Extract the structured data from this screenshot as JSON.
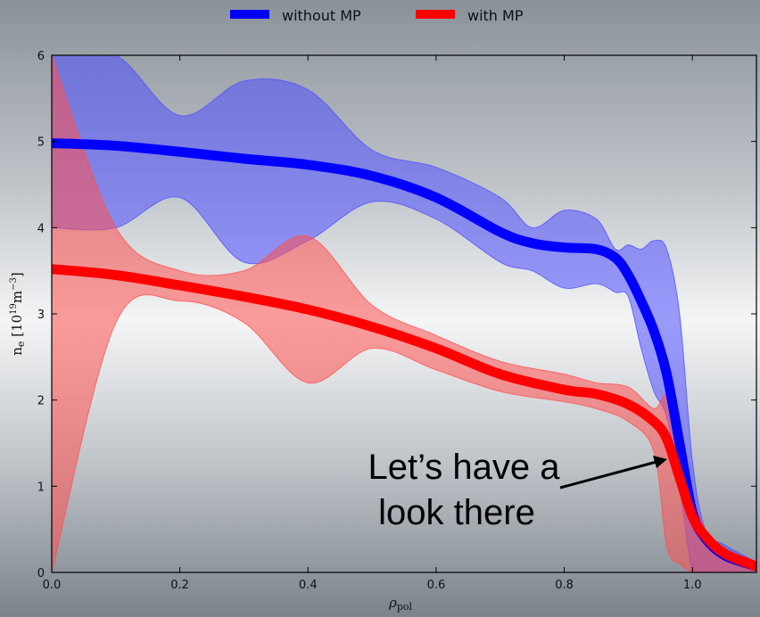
{
  "chart_data": {
    "type": "line",
    "xlabel": "ρpol",
    "ylabel": "ne [10^19 m^-3]",
    "xlim": [
      0.0,
      1.1
    ],
    "ylim": [
      0,
      6
    ],
    "x_ticks": [
      "0.0",
      "0.2",
      "0.4",
      "0.6",
      "0.8",
      "1.0"
    ],
    "y_ticks": [
      "0",
      "1",
      "2",
      "3",
      "4",
      "5",
      "6"
    ],
    "grid": false,
    "legend_placement": "top-center",
    "series": [
      {
        "name": "without MP",
        "color": "#0000ff",
        "band_color": "#5050ff",
        "x": [
          0.0,
          0.1,
          0.2,
          0.3,
          0.4,
          0.5,
          0.6,
          0.7,
          0.75,
          0.8,
          0.85,
          0.88,
          0.9,
          0.92,
          0.94,
          0.96,
          0.98,
          1.0,
          1.02,
          1.05,
          1.1
        ],
        "y": [
          4.98,
          4.95,
          4.88,
          4.8,
          4.73,
          4.6,
          4.35,
          3.95,
          3.82,
          3.77,
          3.75,
          3.65,
          3.45,
          3.15,
          2.8,
          2.3,
          1.5,
          0.7,
          0.4,
          0.2,
          0.07
        ],
        "band_upper": [
          6.0,
          6.0,
          5.3,
          5.7,
          5.6,
          4.9,
          4.7,
          4.35,
          4.0,
          4.2,
          4.1,
          3.75,
          3.8,
          3.75,
          3.85,
          3.75,
          3.0,
          1.3,
          0.5,
          0.32,
          0.12
        ],
        "band_lower": [
          4.0,
          4.0,
          4.35,
          3.6,
          3.85,
          4.3,
          4.1,
          3.6,
          3.5,
          3.3,
          3.35,
          3.25,
          3.2,
          2.6,
          2.1,
          1.8,
          1.0,
          0.0,
          0.0,
          0.0,
          0.0
        ]
      },
      {
        "name": "with MP",
        "color": "#ff0000",
        "band_color": "#ff5050",
        "x": [
          0.0,
          0.1,
          0.2,
          0.3,
          0.4,
          0.5,
          0.6,
          0.7,
          0.8,
          0.85,
          0.9,
          0.94,
          0.96,
          0.98,
          1.0,
          1.02,
          1.05,
          1.1
        ],
        "y": [
          3.52,
          3.45,
          3.33,
          3.2,
          3.05,
          2.85,
          2.6,
          2.3,
          2.12,
          2.07,
          1.95,
          1.75,
          1.55,
          1.1,
          0.65,
          0.42,
          0.22,
          0.07
        ],
        "band_upper": [
          6.0,
          4.0,
          3.5,
          3.5,
          3.9,
          3.1,
          2.75,
          2.45,
          2.3,
          2.2,
          2.15,
          1.9,
          2.05,
          1.5,
          0.9,
          0.5,
          0.28,
          0.1
        ],
        "band_lower": [
          0.0,
          2.9,
          3.15,
          2.9,
          2.2,
          2.6,
          2.35,
          2.1,
          1.98,
          1.9,
          1.75,
          1.4,
          0.3,
          0.1,
          0.0,
          0.0,
          0.0,
          0.0
        ]
      }
    ],
    "annotation": {
      "line1": "Let’s have a",
      "line2": "look there",
      "arrow_target": [
        0.97,
        1.3
      ]
    }
  }
}
